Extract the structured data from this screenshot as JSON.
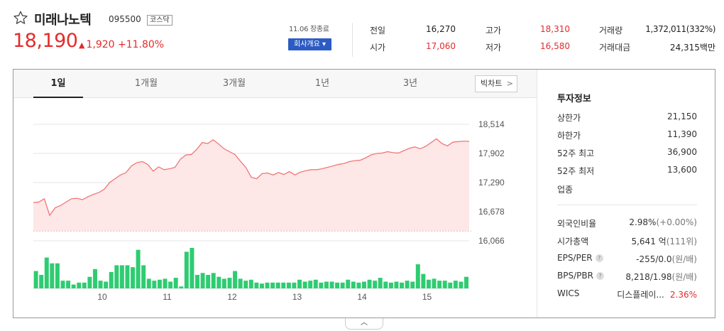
{
  "stock": {
    "name": "미래나노텍",
    "code": "095500",
    "market": "코스닥",
    "price": "18,190",
    "change": "1,920",
    "change_rate": "+11.80%",
    "time_label": "11.06 장종료",
    "company_button": "회사개요 ▾"
  },
  "quote": {
    "prev_close": {
      "label": "전일",
      "value": "16,270"
    },
    "open": {
      "label": "시가",
      "value": "17,060"
    },
    "high": {
      "label": "고가",
      "value": "18,310"
    },
    "low": {
      "label": "저가",
      "value": "16,580"
    },
    "volume": {
      "label": "거래량",
      "value": "1,372,011(332%)"
    },
    "amount": {
      "label": "거래대금",
      "value": "24,315백만"
    }
  },
  "tabs": [
    "1일",
    "1개월",
    "3개월",
    "1년",
    "3년"
  ],
  "big_chart_label": "빅차트",
  "info": {
    "title": "투자정보",
    "rows": [
      {
        "label": "상한가",
        "value": "21,150"
      },
      {
        "label": "하한가",
        "value": "11,390"
      },
      {
        "label": "52주 최고",
        "value": "36,900"
      },
      {
        "label": "52주 최저",
        "value": "13,600"
      },
      {
        "label": "업종",
        "value": ""
      }
    ],
    "rows2": [
      {
        "label": "외국인비율",
        "value": "2.98%",
        "sub": "(+0.00%)"
      },
      {
        "label": "시가총액",
        "value": "5,641 억",
        "sub": "(111위)"
      },
      {
        "label": "EPS/PER",
        "value": "-255/0.0",
        "sub": "(원/배)"
      },
      {
        "label": "BPS/PBR",
        "value": "8,218/1.98",
        "sub": "(원/배)"
      },
      {
        "label": "WICS",
        "value": "디스플레이...",
        "value2": "2.36%"
      }
    ]
  },
  "colors": {
    "up": "#e42b2b",
    "down": "#2d5bc4",
    "volume": "#2ecc71",
    "line": "#f26d6d",
    "fill": "#fde3e3"
  },
  "chart_data": {
    "type": "area",
    "y_ticks": [
      "18,514",
      "17,902",
      "17,290",
      "16,678",
      "16,066"
    ],
    "ylim": [
      16066,
      18514
    ],
    "x_ticks": [
      "10",
      "11",
      "12",
      "13",
      "14",
      "15"
    ],
    "baseline": 16270,
    "price_series": [
      16870,
      16880,
      16950,
      16600,
      16760,
      16810,
      16880,
      16950,
      16960,
      16930,
      16990,
      17040,
      17080,
      17150,
      17290,
      17370,
      17450,
      17500,
      17640,
      17710,
      17730,
      17670,
      17530,
      17620,
      17560,
      17580,
      17610,
      17780,
      17870,
      17880,
      17990,
      18130,
      18110,
      18190,
      18100,
      18000,
      17940,
      17880,
      17740,
      17610,
      17400,
      17370,
      17480,
      17490,
      17450,
      17500,
      17460,
      17520,
      17450,
      17510,
      17540,
      17560,
      17560,
      17580,
      17610,
      17640,
      17670,
      17690,
      17730,
      17750,
      17760,
      17810,
      17870,
      17900,
      17910,
      17940,
      17920,
      17910,
      17960,
      18010,
      18040,
      18000,
      18050,
      18130,
      18210,
      18110,
      18060,
      18140,
      18150,
      18160,
      18155
    ],
    "volume_series": [
      18,
      14,
      32,
      26,
      26,
      8,
      8,
      4,
      6,
      6,
      12,
      20,
      8,
      7,
      17,
      24,
      24,
      24,
      22,
      40,
      24,
      10,
      8,
      9,
      10,
      7,
      11,
      2,
      38,
      42,
      14,
      16,
      14,
      16,
      12,
      10,
      11,
      18,
      10,
      8,
      9,
      6,
      5,
      6,
      6,
      6,
      6,
      6,
      6,
      9,
      7,
      8,
      9,
      6,
      7,
      7,
      6,
      6,
      9,
      7,
      6,
      7,
      9,
      8,
      11,
      7,
      6,
      7,
      6,
      8,
      7,
      25,
      15,
      9,
      10,
      8,
      8,
      6,
      8,
      7,
      12
    ]
  }
}
